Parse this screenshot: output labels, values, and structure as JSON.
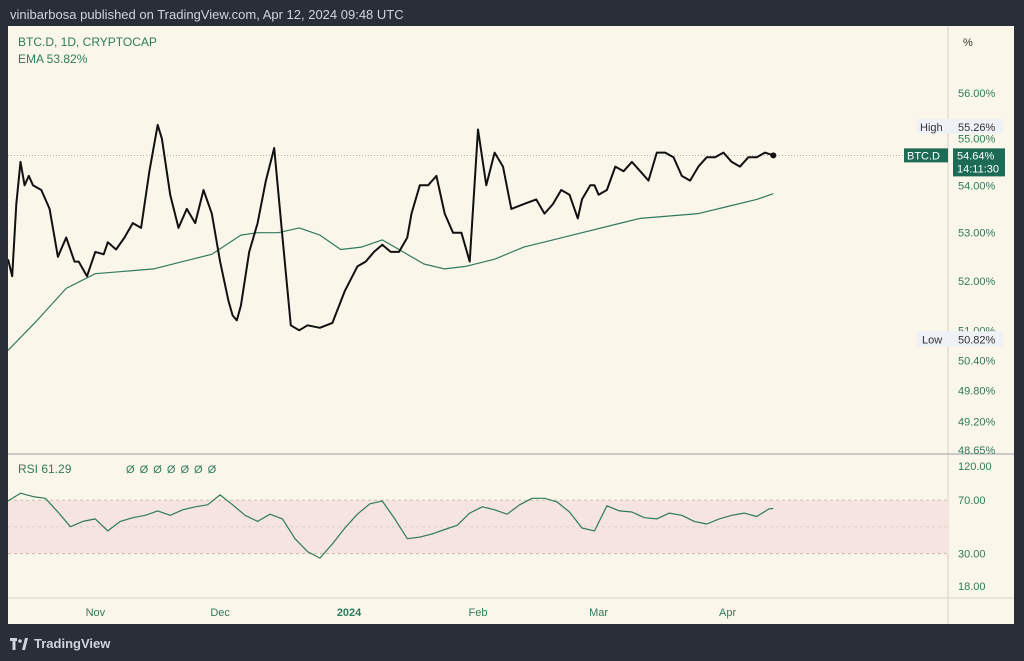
{
  "header": {
    "text": "vinibarbosa published on TradingView.com, Apr 12, 2024 09:48 UTC"
  },
  "footer": {
    "brand": "TradingView"
  },
  "colors": {
    "background": "#faf6ea",
    "price_line": "#111111",
    "ema_line": "#2f7a5d",
    "rsi_line": "#2f7a5d",
    "rsi_band": "#f5e4df",
    "badge": "#1d6b55",
    "text": "#2f7a5d"
  },
  "chart_data": [
    {
      "type": "line",
      "legend_title": "BTC.D, 1D, CRYPTOCAP",
      "ema_label": "EMA",
      "ema_value": "53.82%",
      "unit_label": "%",
      "x_labels": [
        "Nov",
        "Dec",
        "2024",
        "Feb",
        "Mar",
        "Apr"
      ],
      "x_label_dates": [
        "2023-11-01",
        "2023-12-01",
        "2024-01-01",
        "2024-02-01",
        "2024-03-01",
        "2024-04-01"
      ],
      "x_range": [
        "2023-10-11",
        "2024-05-24"
      ],
      "y_ticks": [
        "56.00%",
        "55.00%",
        "54.00%",
        "53.00%",
        "52.00%",
        "51.00%",
        "50.40%",
        "49.80%",
        "49.20%",
        "48.65%"
      ],
      "y_tick_values": [
        56.0,
        55.0,
        54.0,
        53.0,
        52.0,
        51.0,
        50.4,
        49.8,
        49.2,
        48.65
      ],
      "y_scale": "log",
      "high": {
        "label": "High",
        "value": "55.26%",
        "y": 55.26
      },
      "low": {
        "label": "Low",
        "value": "50.82%",
        "y": 50.82
      },
      "last": {
        "label": "BTC.D",
        "value": "54.64%",
        "countdown": "14:11:30",
        "y": 54.64
      },
      "series": [
        {
          "name": "BTC.D",
          "x": [
            "2023-10-11",
            "2023-10-12",
            "2023-10-13",
            "2023-10-14",
            "2023-10-15",
            "2023-10-16",
            "2023-10-17",
            "2023-10-19",
            "2023-10-21",
            "2023-10-23",
            "2023-10-25",
            "2023-10-27",
            "2023-10-28",
            "2023-10-30",
            "2023-11-01",
            "2023-11-03",
            "2023-11-04",
            "2023-11-06",
            "2023-11-08",
            "2023-11-10",
            "2023-11-12",
            "2023-11-14",
            "2023-11-16",
            "2023-11-17",
            "2023-11-19",
            "2023-11-21",
            "2023-11-23",
            "2023-11-25",
            "2023-11-27",
            "2023-11-29",
            "2023-12-01",
            "2023-12-03",
            "2023-12-04",
            "2023-12-05",
            "2023-12-06",
            "2023-12-08",
            "2023-12-10",
            "2023-12-12",
            "2023-12-14",
            "2023-12-16",
            "2023-12-18",
            "2023-12-20",
            "2023-12-22",
            "2023-12-25",
            "2023-12-28",
            "2023-12-31",
            "2024-01-03",
            "2024-01-05",
            "2024-01-07",
            "2024-01-09",
            "2024-01-11",
            "2024-01-13",
            "2024-01-15",
            "2024-01-16",
            "2024-01-18",
            "2024-01-20",
            "2024-01-22",
            "2024-01-24",
            "2024-01-26",
            "2024-01-28",
            "2024-01-30",
            "2024-02-01",
            "2024-02-03",
            "2024-02-05",
            "2024-02-07",
            "2024-02-09",
            "2024-02-12",
            "2024-02-15",
            "2024-02-17",
            "2024-02-19",
            "2024-02-21",
            "2024-02-23",
            "2024-02-25",
            "2024-02-26",
            "2024-02-28",
            "2024-02-29",
            "2024-03-01",
            "2024-03-03",
            "2024-03-05",
            "2024-03-07",
            "2024-03-09",
            "2024-03-11",
            "2024-03-13",
            "2024-03-15",
            "2024-03-17",
            "2024-03-19",
            "2024-03-21",
            "2024-03-23",
            "2024-03-25",
            "2024-03-27",
            "2024-03-29",
            "2024-03-31",
            "2024-04-02",
            "2024-04-04",
            "2024-04-06",
            "2024-04-08",
            "2024-04-10",
            "2024-04-12"
          ],
          "values": [
            52.45,
            52.1,
            53.6,
            54.5,
            54.0,
            54.2,
            54.0,
            53.9,
            53.5,
            52.5,
            52.9,
            52.4,
            52.4,
            52.1,
            52.6,
            52.55,
            52.8,
            52.65,
            52.9,
            53.2,
            53.1,
            54.3,
            55.3,
            55.0,
            53.8,
            53.1,
            53.5,
            53.2,
            53.9,
            53.4,
            52.4,
            51.6,
            51.3,
            51.2,
            51.5,
            52.6,
            53.2,
            54.1,
            54.8,
            52.9,
            51.1,
            51.0,
            51.1,
            51.05,
            51.15,
            51.8,
            52.3,
            52.4,
            52.6,
            52.75,
            52.6,
            52.6,
            52.9,
            53.4,
            54.0,
            54.0,
            54.2,
            53.4,
            53.0,
            53.0,
            52.4,
            55.2,
            54.0,
            54.7,
            54.4,
            53.5,
            53.6,
            53.7,
            53.4,
            53.6,
            53.9,
            53.8,
            53.3,
            53.7,
            54.0,
            54.0,
            53.8,
            53.9,
            54.4,
            54.3,
            54.5,
            54.3,
            54.1,
            54.7,
            54.7,
            54.6,
            54.2,
            54.1,
            54.4,
            54.6,
            54.6,
            54.7,
            54.5,
            54.4,
            54.6,
            54.6,
            54.7,
            54.64
          ]
        },
        {
          "name": "EMA",
          "x": [
            "2023-10-11",
            "2023-10-18",
            "2023-10-25",
            "2023-11-01",
            "2023-11-08",
            "2023-11-15",
            "2023-11-22",
            "2023-11-29",
            "2023-12-06",
            "2023-12-10",
            "2023-12-15",
            "2023-12-20",
            "2023-12-25",
            "2023-12-30",
            "2024-01-04",
            "2024-01-09",
            "2024-01-14",
            "2024-01-19",
            "2024-01-24",
            "2024-01-29",
            "2024-02-05",
            "2024-02-12",
            "2024-02-19",
            "2024-02-26",
            "2024-03-04",
            "2024-03-11",
            "2024-03-18",
            "2024-03-25",
            "2024-04-01",
            "2024-04-08",
            "2024-04-12"
          ],
          "values": [
            50.6,
            51.2,
            51.85,
            52.15,
            52.2,
            52.25,
            52.4,
            52.55,
            52.95,
            53.0,
            53.0,
            53.1,
            52.95,
            52.65,
            52.7,
            52.85,
            52.6,
            52.35,
            52.25,
            52.3,
            52.45,
            52.7,
            52.85,
            53.0,
            53.15,
            53.3,
            53.35,
            53.4,
            53.55,
            53.7,
            53.82
          ]
        }
      ]
    },
    {
      "type": "line",
      "legend_title": "RSI",
      "rsi_value": "61.29",
      "legend_symbols": "Ø Ø Ø Ø Ø Ø Ø",
      "y_ticks": [
        "120.00",
        "70.00",
        "30.00",
        "18.00"
      ],
      "y_tick_values": [
        120,
        70,
        30,
        18
      ],
      "y_scale": "log",
      "band": [
        30,
        70
      ],
      "series": [
        {
          "name": "RSI",
          "x": [
            "2023-10-11",
            "2023-10-14",
            "2023-10-17",
            "2023-10-20",
            "2023-10-23",
            "2023-10-26",
            "2023-10-29",
            "2023-11-01",
            "2023-11-04",
            "2023-11-07",
            "2023-11-10",
            "2023-11-13",
            "2023-11-16",
            "2023-11-19",
            "2023-11-22",
            "2023-11-25",
            "2023-11-28",
            "2023-12-01",
            "2023-12-04",
            "2023-12-07",
            "2023-12-10",
            "2023-12-13",
            "2023-12-16",
            "2023-12-19",
            "2023-12-22",
            "2023-12-25",
            "2023-12-28",
            "2023-12-31",
            "2024-01-03",
            "2024-01-06",
            "2024-01-09",
            "2024-01-12",
            "2024-01-15",
            "2024-01-18",
            "2024-01-21",
            "2024-01-24",
            "2024-01-27",
            "2024-01-30",
            "2024-02-02",
            "2024-02-05",
            "2024-02-08",
            "2024-02-11",
            "2024-02-14",
            "2024-02-17",
            "2024-02-20",
            "2024-02-23",
            "2024-02-26",
            "2024-02-29",
            "2024-03-03",
            "2024-03-06",
            "2024-03-09",
            "2024-03-12",
            "2024-03-15",
            "2024-03-18",
            "2024-03-21",
            "2024-03-24",
            "2024-03-27",
            "2024-03-30",
            "2024-04-02",
            "2024-04-05",
            "2024-04-08",
            "2024-04-11",
            "2024-04-12"
          ],
          "values": [
            69,
            78,
            74,
            72,
            58,
            46,
            50,
            52,
            43,
            50,
            53,
            55,
            59,
            55,
            60,
            63,
            65,
            76,
            65,
            55,
            50,
            56,
            52,
            38,
            31,
            28,
            35,
            45,
            56,
            66,
            69,
            52,
            38,
            39,
            41,
            44,
            47,
            57,
            63,
            60,
            56,
            65,
            72,
            72,
            68,
            58,
            45,
            43,
            64,
            59,
            58,
            53,
            52,
            57,
            55,
            50,
            48,
            52,
            55,
            57,
            54,
            61,
            61.29
          ]
        }
      ]
    }
  ]
}
